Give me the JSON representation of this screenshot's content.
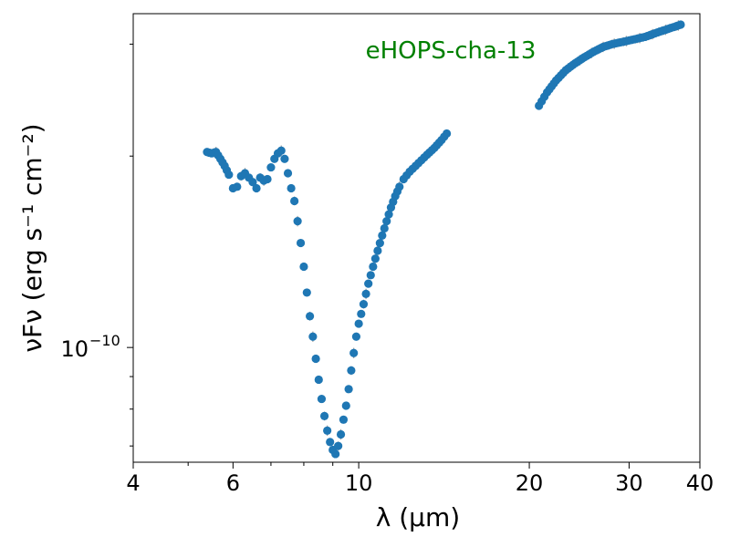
{
  "chart_data": {
    "type": "scatter",
    "title": "",
    "annotation": "eHOPS-cha-13",
    "annotation_color": "#008000",
    "xlabel_text": "λ (μm)",
    "ylabel_text": "νFν (erg s⁻¹ cm⁻²)",
    "x_scale": "log",
    "y_scale": "log",
    "xlim": [
      4,
      40
    ],
    "ylim": [
      6.6e-11,
      3.35e-10
    ],
    "x_ticks": [
      4,
      6,
      10,
      20,
      30,
      40
    ],
    "x_tick_labels": [
      "4",
      "6",
      "10",
      "20",
      "30",
      "40"
    ],
    "x_minor_ticks": [
      5,
      7,
      8,
      9
    ],
    "y_major_ticks": [
      1e-10
    ],
    "y_major_tick_labels": [
      "10"
    ],
    "y_major_tick_exponents": [
      "−10"
    ],
    "y_minor_ticks": [
      7e-11,
      8e-11,
      9e-11,
      2e-10,
      3e-10
    ],
    "grid": false,
    "marker_color": "#1f77b4",
    "errorbar_color": "#a0a0a0",
    "series": [
      {
        "x": [
          5.4,
          5.5,
          5.6,
          5.7,
          5.8,
          5.9,
          6.0,
          6.1,
          6.2,
          6.3,
          6.4,
          6.5,
          6.6,
          6.7,
          6.8,
          6.9,
          7.0,
          7.1,
          7.2,
          7.3,
          7.4,
          7.5,
          7.6,
          7.7,
          7.8,
          7.9,
          8.0,
          8.1,
          8.2,
          8.3,
          8.4,
          8.5,
          8.6,
          8.7,
          8.8,
          8.9,
          9.0,
          9.1,
          9.2,
          9.3,
          9.4,
          9.5,
          9.6,
          9.7,
          9.8,
          9.9,
          10.0,
          10.2,
          10.4,
          10.6,
          10.8,
          11.0,
          11.2,
          11.4,
          11.6,
          11.8,
          12.0,
          12.3,
          12.6,
          12.9,
          13.2,
          13.6,
          14.0,
          14.3,
          20.8,
          21.5,
          22.3,
          23.2,
          24.1,
          25.0,
          26.0,
          27.0,
          28.0,
          29.0,
          30.0,
          31.0,
          32.0,
          33.0,
          34.0,
          34.8,
          35.5,
          36.3,
          37.0
        ],
        "y": [
          2.03e-10,
          2.02e-10,
          2.03e-10,
          1.98e-10,
          1.93e-10,
          1.87e-10,
          1.78e-10,
          1.79e-10,
          1.86e-10,
          1.88e-10,
          1.85e-10,
          1.82e-10,
          1.78e-10,
          1.85e-10,
          1.83e-10,
          1.84e-10,
          1.92e-10,
          1.98e-10,
          2.02e-10,
          2.04e-10,
          1.98e-10,
          1.88e-10,
          1.78e-10,
          1.7e-10,
          1.58e-10,
          1.46e-10,
          1.34e-10,
          1.22e-10,
          1.12e-10,
          1.04e-10,
          9.6e-11,
          8.9e-11,
          8.3e-11,
          7.8e-11,
          7.4e-11,
          7.1e-11,
          6.9e-11,
          6.8e-11,
          7e-11,
          7.3e-11,
          7.7e-11,
          8.1e-11,
          8.6e-11,
          9.2e-11,
          9.8e-11,
          1.04e-10,
          1.09e-10,
          1.17e-10,
          1.26e-10,
          1.34e-10,
          1.42e-10,
          1.5e-10,
          1.58e-10,
          1.66e-10,
          1.73e-10,
          1.79e-10,
          1.84e-10,
          1.89e-10,
          1.93e-10,
          1.97e-10,
          2.01e-10,
          2.06e-10,
          2.12e-10,
          2.17e-10,
          2.4e-10,
          2.52e-10,
          2.63e-10,
          2.73e-10,
          2.8e-10,
          2.86e-10,
          2.92e-10,
          2.97e-10,
          3e-10,
          3.02e-10,
          3.04e-10,
          3.06e-10,
          3.08e-10,
          3.11e-10,
          3.14e-10,
          3.16e-10,
          3.18e-10,
          3.2e-10,
          3.22e-10
        ]
      }
    ]
  }
}
